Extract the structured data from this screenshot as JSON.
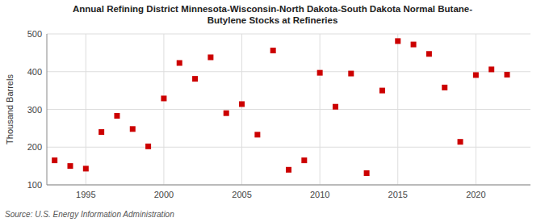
{
  "chart_data": {
    "type": "scatter",
    "title": "Annual Refining District Minnesota-Wisconsin-North Dakota-South Dakota Normal Butane-\nButylene Stocks at Refineries",
    "ylabel": "Thousand Barrels",
    "source": "Source: U.S. Energy Information Administration",
    "color": "#cc0000",
    "marker": "square",
    "grid": true,
    "xlim": [
      1992.5,
      2023.5
    ],
    "ylim": [
      100,
      500
    ],
    "xticks": [
      1995,
      2000,
      2005,
      2010,
      2015,
      2020
    ],
    "yticks": [
      100,
      200,
      300,
      400,
      500
    ],
    "x": [
      1993,
      1994,
      1995,
      1996,
      1997,
      1998,
      1999,
      2000,
      2001,
      2002,
      2003,
      2004,
      2005,
      2006,
      2007,
      2008,
      2009,
      2010,
      2011,
      2012,
      2013,
      2014,
      2015,
      2016,
      2017,
      2018,
      2019,
      2020,
      2021,
      2022
    ],
    "values": [
      165,
      150,
      143,
      240,
      283,
      248,
      202,
      329,
      423,
      381,
      438,
      290,
      314,
      233,
      456,
      140,
      165,
      397,
      307,
      395,
      131,
      350,
      481,
      472,
      447,
      358,
      214,
      391,
      406,
      392
    ]
  }
}
